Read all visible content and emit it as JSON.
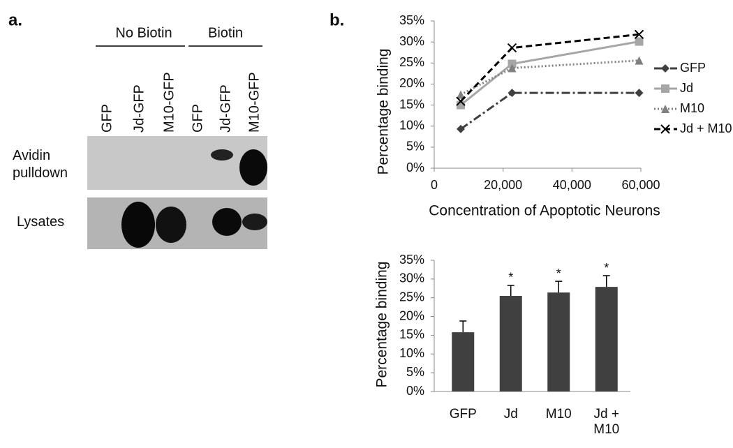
{
  "panel_a": {
    "label": "a.",
    "groups": [
      "No Biotin",
      "Biotin"
    ],
    "lanes": [
      "GFP",
      "Jd-GFP",
      "M10-GFP",
      "GFP",
      "Jd-GFP",
      "M10-GFP"
    ],
    "rows": [
      "Avidin pulldown",
      "Lysates"
    ]
  },
  "panel_b_label": "b.",
  "chart_data": [
    {
      "type": "line",
      "xlabel": "Concentration of Apoptotic Neurons",
      "ylabel": "Percentage binding",
      "x": [
        7700,
        22600,
        59500
      ],
      "xlim": [
        0,
        60000
      ],
      "xticks": [
        0,
        {
          "value": 20000,
          "label": "20,000"
        },
        {
          "value": 40000,
          "label": "40,000"
        },
        {
          "value": 60000,
          "label": "60,000"
        }
      ],
      "ylim": [
        0,
        35
      ],
      "yticks": [
        {
          "value": 0,
          "label": "0%"
        },
        {
          "value": 5,
          "label": "5%"
        },
        {
          "value": 10,
          "label": "10%"
        },
        {
          "value": 15,
          "label": "15%"
        },
        {
          "value": 20,
          "label": "20%"
        },
        {
          "value": 25,
          "label": "25%"
        },
        {
          "value": 30,
          "label": "30%"
        },
        {
          "value": 35,
          "label": "35%"
        }
      ],
      "legend": "right",
      "series": [
        {
          "name": "GFP",
          "color": "#404040",
          "line_style": "dashdot",
          "marker": "diamond",
          "values": [
            9.3,
            17.9,
            17.9
          ]
        },
        {
          "name": "Jd",
          "color": "#a6a6a6",
          "line_style": "solid",
          "marker": "square",
          "values": [
            15.0,
            24.8,
            30.1
          ]
        },
        {
          "name": "M10",
          "color": "#808080",
          "line_style": "dotted",
          "marker": "triangle",
          "values": [
            17.5,
            23.8,
            25.6
          ]
        },
        {
          "name": "Jd + M10",
          "color": "#000000",
          "line_style": "dashed",
          "marker": "x",
          "values": [
            15.9,
            28.6,
            31.8
          ]
        }
      ]
    },
    {
      "type": "bar",
      "ylabel": "Percentage binding",
      "color": "#404040",
      "categories": [
        "GFP",
        "Jd",
        "M10",
        "Jd + M10"
      ],
      "values": [
        15.8,
        25.5,
        26.4,
        27.9
      ],
      "errors": [
        3.0,
        2.8,
        3.0,
        3.0
      ],
      "annotations": [
        {
          "text": "*",
          "category": "Jd"
        },
        {
          "text": "*",
          "category": "M10"
        },
        {
          "text": "*",
          "category": "Jd + M10"
        }
      ],
      "ylim": [
        0,
        35
      ],
      "yticks": [
        {
          "value": 0,
          "label": "0%"
        },
        {
          "value": 5,
          "label": "5%"
        },
        {
          "value": 10,
          "label": "10%"
        },
        {
          "value": 15,
          "label": "15%"
        },
        {
          "value": 20,
          "label": "20%"
        },
        {
          "value": 25,
          "label": "25%"
        },
        {
          "value": 30,
          "label": "30%"
        },
        {
          "value": 35,
          "label": "35%"
        }
      ]
    }
  ]
}
